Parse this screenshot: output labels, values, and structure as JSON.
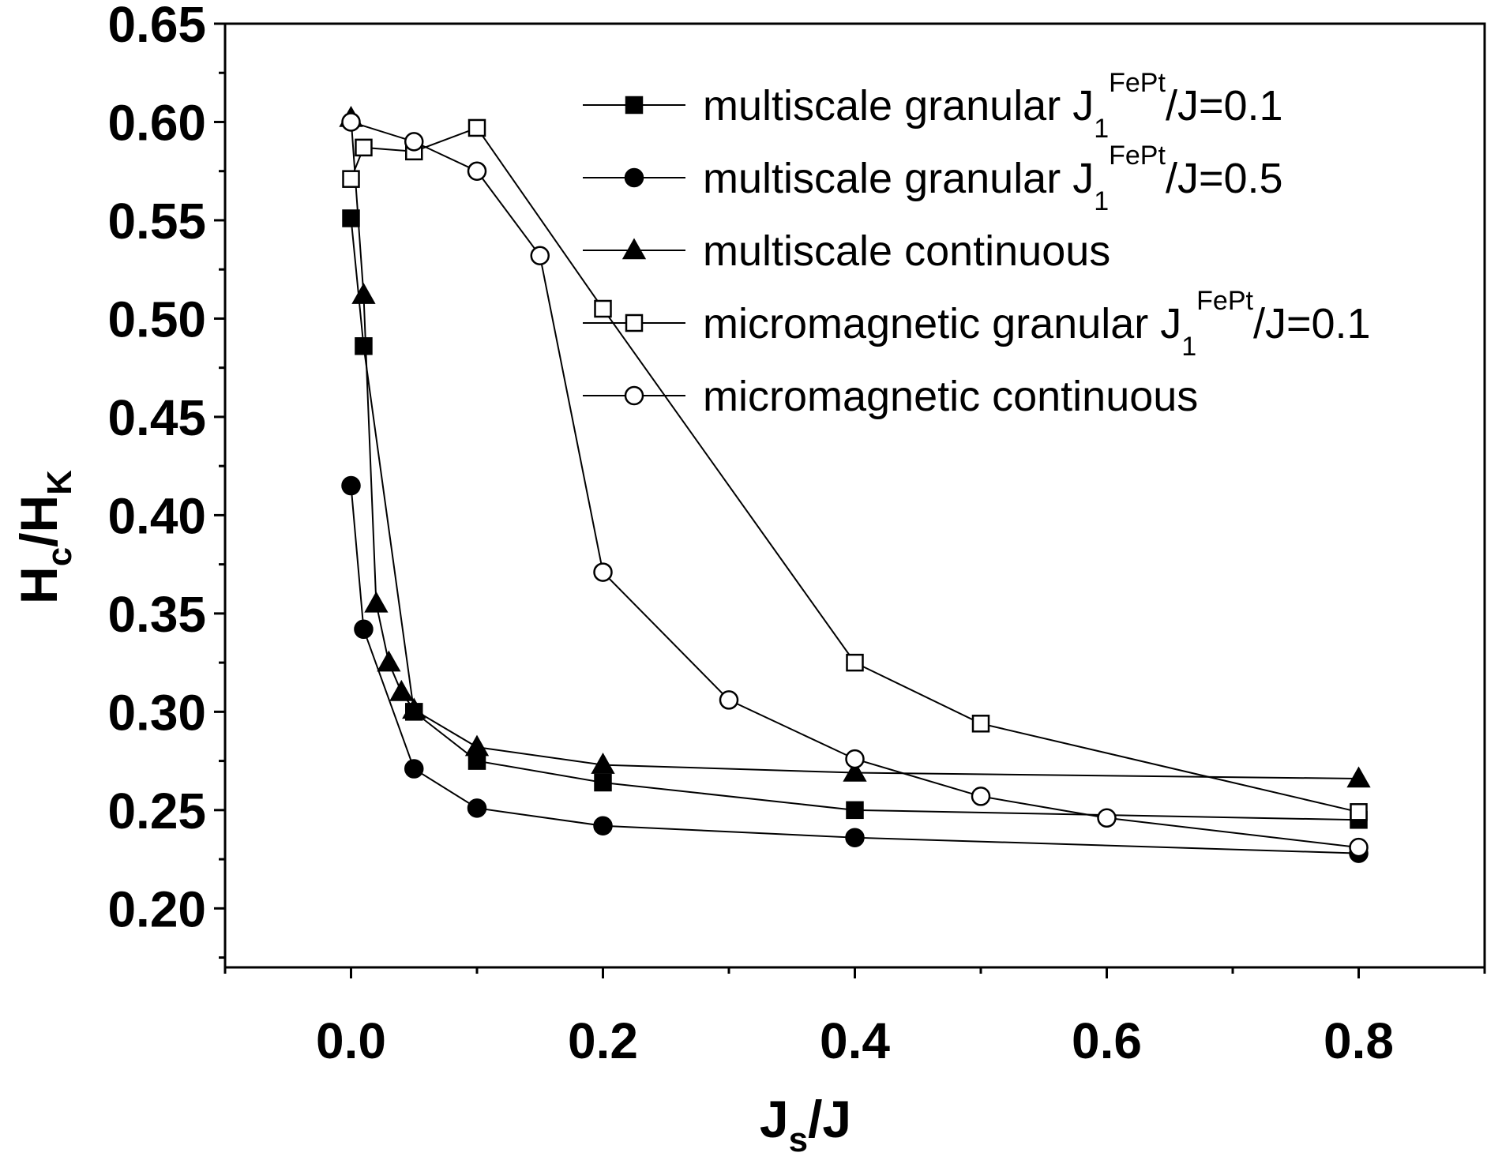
{
  "chart_data": {
    "type": "line",
    "xlabel": {
      "main": "J",
      "sub": "s",
      "rest": "/J"
    },
    "ylabel": {
      "p1": "H",
      "s1": "c",
      "p2": "/H",
      "s2": "K"
    },
    "xlim": [
      -0.1,
      0.9
    ],
    "ylim": [
      0.17,
      0.65
    ],
    "xticks": [
      0.0,
      0.2,
      0.4,
      0.6,
      0.8
    ],
    "xtick_labels": [
      "0.0",
      "0.2",
      "0.4",
      "0.6",
      "0.8"
    ],
    "yticks": [
      0.2,
      0.25,
      0.3,
      0.35,
      0.4,
      0.45,
      0.5,
      0.55,
      0.6,
      0.65
    ],
    "ytick_labels": [
      "0.20",
      "0.25",
      "0.30",
      "0.35",
      "0.40",
      "0.45",
      "0.50",
      "0.55",
      "0.60",
      "0.65"
    ],
    "grid": false,
    "legend_position": "top-right",
    "series": [
      {
        "name": "multiscale granular J1 FePt/J=0.1",
        "legend": {
          "pre": "multiscale granular J",
          "sub": "1",
          "sup": "FePt",
          "post": "/J=0.1"
        },
        "marker": "square",
        "filled": true,
        "x": [
          0.0,
          0.01,
          0.05,
          0.1,
          0.2,
          0.4,
          0.8
        ],
        "y": [
          0.551,
          0.486,
          0.3,
          0.275,
          0.264,
          0.25,
          0.245
        ]
      },
      {
        "name": "multiscale granular J1 FePt/J=0.5",
        "legend": {
          "pre": "multiscale granular J",
          "sub": "1",
          "sup": "FePt",
          "post": "/J=0.5"
        },
        "marker": "circle",
        "filled": true,
        "x": [
          0.0,
          0.01,
          0.05,
          0.1,
          0.2,
          0.4,
          0.8
        ],
        "y": [
          0.415,
          0.342,
          0.271,
          0.251,
          0.242,
          0.236,
          0.228
        ]
      },
      {
        "name": "multiscale continuous",
        "legend": {
          "pre": "multiscale continuous",
          "sub": "",
          "sup": "",
          "post": ""
        },
        "marker": "triangle",
        "filled": true,
        "x": [
          0.0,
          0.01,
          0.02,
          0.03,
          0.04,
          0.05,
          0.1,
          0.2,
          0.4,
          0.8
        ],
        "y": [
          0.602,
          0.512,
          0.355,
          0.325,
          0.31,
          0.301,
          0.282,
          0.273,
          0.269,
          0.266
        ]
      },
      {
        "name": "micromagnetic granular J1 FePt/J=0.1",
        "legend": {
          "pre": "micromagnetic granular J",
          "sub": "1",
          "sup": "FePt",
          "post": "/J=0.1"
        },
        "marker": "square",
        "filled": false,
        "x": [
          0.0,
          0.01,
          0.05,
          0.1,
          0.2,
          0.4,
          0.5,
          0.8
        ],
        "y": [
          0.571,
          0.587,
          0.585,
          0.597,
          0.505,
          0.325,
          0.294,
          0.249
        ]
      },
      {
        "name": "micromagnetic continuous",
        "legend": {
          "pre": "micromagnetic continuous",
          "sub": "",
          "sup": "",
          "post": ""
        },
        "marker": "circle",
        "filled": false,
        "x": [
          0.0,
          0.05,
          0.1,
          0.15,
          0.2,
          0.3,
          0.4,
          0.5,
          0.6,
          0.8
        ],
        "y": [
          0.6,
          0.59,
          0.575,
          0.532,
          0.371,
          0.306,
          0.276,
          0.257,
          0.246,
          0.231
        ]
      }
    ]
  }
}
